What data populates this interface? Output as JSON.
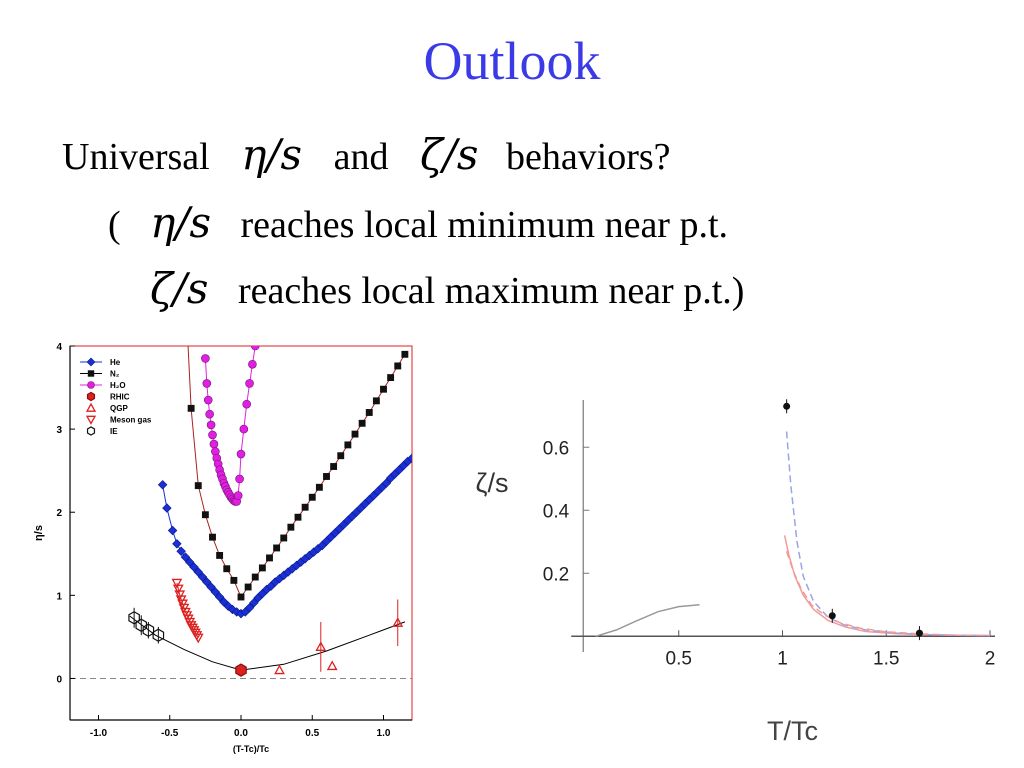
{
  "slide": {
    "title": "Outlook",
    "line1_prefix": "Universal",
    "line1_eta": "η/s",
    "line1_and": "and",
    "line1_zeta": "ζ/s",
    "line1_suffix": "behaviors?",
    "line2_open": "(",
    "line2_eta": "η/s",
    "line2_text": "reaches local minimum near p.t.",
    "line3_zeta": "ζ/s",
    "line3_text": "reaches local maximum near p.t.)"
  },
  "colors": {
    "title": "#3a3ae6",
    "he": "#1a2fd6",
    "n2": "#111111",
    "h2o": "#e020e0",
    "rhic": "#dd2020",
    "frame": "#dd2020"
  },
  "chart_data": [
    {
      "type": "scatter",
      "xlabel": "(T-Tc)/Tc",
      "ylabel": "η/s",
      "xlim": [
        -1.2,
        1.2
      ],
      "ylim": [
        -0.5,
        4
      ],
      "xticks": [
        "-1.0",
        "-0.5",
        "0.0",
        "0.5",
        "1.0"
      ],
      "yticks": [
        "0",
        "1",
        "2",
        "3",
        "4"
      ],
      "legend_position": "top-left",
      "series": [
        {
          "name": "He",
          "marker": "diamond",
          "color": "#1a2fd6",
          "x": [
            -0.55,
            -0.52,
            -0.48,
            -0.45,
            -0.42,
            -0.39,
            -0.36,
            -0.33,
            -0.3,
            -0.27,
            -0.24,
            -0.21,
            -0.18,
            -0.15,
            -0.12,
            -0.09,
            -0.06,
            -0.03,
            0.0,
            0.03,
            0.06,
            0.09,
            0.12,
            0.15,
            0.18,
            0.21,
            0.24,
            0.27,
            0.3,
            0.33,
            0.36,
            0.39,
            0.42,
            0.45,
            0.48,
            0.51,
            0.54,
            0.57,
            0.6,
            0.63,
            0.66,
            0.69,
            0.72,
            0.75,
            0.78,
            0.81,
            0.84,
            0.87,
            0.9,
            0.93,
            0.96,
            0.99,
            1.02,
            1.05,
            1.08,
            1.11,
            1.14,
            1.17,
            1.2
          ],
          "y": [
            2.33,
            2.05,
            1.78,
            1.62,
            1.53,
            1.46,
            1.4,
            1.34,
            1.28,
            1.22,
            1.16,
            1.1,
            1.04,
            0.98,
            0.92,
            0.87,
            0.83,
            0.8,
            0.78,
            0.8,
            0.85,
            0.91,
            0.97,
            1.02,
            1.07,
            1.11,
            1.16,
            1.2,
            1.24,
            1.28,
            1.32,
            1.36,
            1.4,
            1.44,
            1.48,
            1.52,
            1.56,
            1.6,
            1.65,
            1.7,
            1.75,
            1.8,
            1.85,
            1.9,
            1.95,
            2.0,
            2.05,
            2.1,
            2.15,
            2.2,
            2.25,
            2.3,
            2.35,
            2.41,
            2.46,
            2.51,
            2.56,
            2.61,
            2.65
          ]
        },
        {
          "name": "N2",
          "marker": "square",
          "color": "#111111",
          "x": [
            -0.35,
            -0.3,
            -0.25,
            -0.2,
            -0.15,
            -0.1,
            -0.05,
            0.0,
            0.05,
            0.1,
            0.15,
            0.2,
            0.25,
            0.3,
            0.35,
            0.4,
            0.45,
            0.5,
            0.55,
            0.6,
            0.65,
            0.7,
            0.75,
            0.8,
            0.85,
            0.9,
            0.95,
            1.0,
            1.05,
            1.1,
            1.15
          ],
          "y": [
            3.25,
            2.32,
            1.97,
            1.7,
            1.48,
            1.32,
            1.18,
            0.98,
            1.1,
            1.22,
            1.33,
            1.45,
            1.57,
            1.69,
            1.82,
            1.94,
            2.06,
            2.18,
            2.3,
            2.43,
            2.55,
            2.68,
            2.81,
            2.94,
            3.07,
            3.2,
            3.34,
            3.48,
            3.62,
            3.76,
            3.9
          ]
        },
        {
          "name": "H2O",
          "marker": "circle",
          "color": "#e020e0",
          "x": [
            -0.25,
            -0.24,
            -0.23,
            -0.22,
            -0.21,
            -0.2,
            -0.19,
            -0.18,
            -0.17,
            -0.16,
            -0.15,
            -0.14,
            -0.13,
            -0.12,
            -0.11,
            -0.1,
            -0.09,
            -0.08,
            -0.07,
            -0.06,
            -0.05,
            -0.04,
            -0.03,
            -0.02,
            -0.01,
            0.0,
            0.02,
            0.04,
            0.06,
            0.08,
            0.1
          ],
          "y": [
            3.85,
            3.55,
            3.35,
            3.18,
            3.05,
            2.93,
            2.82,
            2.73,
            2.65,
            2.58,
            2.51,
            2.45,
            2.4,
            2.35,
            2.31,
            2.27,
            2.24,
            2.21,
            2.18,
            2.16,
            2.14,
            2.13,
            2.13,
            2.2,
            2.4,
            2.7,
            3.0,
            3.3,
            3.55,
            3.78,
            4.0
          ]
        },
        {
          "name": "RHIC",
          "marker": "hexagon",
          "color": "#dd2020",
          "x": [
            0.0
          ],
          "y": [
            0.1
          ],
          "err": [
            0.05
          ]
        },
        {
          "name": "QGP",
          "marker": "triangle-up",
          "color": "#dd2020",
          "x": [
            0.27,
            0.56,
            0.64,
            1.1
          ],
          "y": [
            0.1,
            0.38,
            0.15,
            0.67
          ],
          "err": [
            0,
            0.3,
            0,
            0.28
          ]
        },
        {
          "name": "Meson gas",
          "marker": "triangle-down",
          "color": "#dd2020",
          "x": [
            -0.45,
            -0.44,
            -0.43,
            -0.42,
            -0.41,
            -0.4,
            -0.39,
            -0.38,
            -0.37,
            -0.36,
            -0.35,
            -0.34,
            -0.33,
            -0.32,
            -0.31,
            -0.3
          ],
          "y": [
            1.15,
            1.08,
            1.01,
            0.95,
            0.9,
            0.85,
            0.8,
            0.76,
            0.72,
            0.68,
            0.64,
            0.61,
            0.58,
            0.55,
            0.52,
            0.49
          ]
        },
        {
          "name": "IE",
          "marker": "hexagon-open",
          "color": "#111111",
          "x": [
            -0.75,
            -0.7,
            -0.65,
            -0.58
          ],
          "y": [
            0.73,
            0.64,
            0.58,
            0.52
          ],
          "err": [
            0.12,
            0.12,
            0.1,
            0.1
          ]
        }
      ],
      "reference_line_y": 0
    },
    {
      "type": "line",
      "xlabel": "T/Tc",
      "ylabel": "ζ/s",
      "xlim": [
        0,
        2
      ],
      "ylim": [
        -0.05,
        0.75
      ],
      "xticks": [
        "0.5",
        "1",
        "1.5",
        "2"
      ],
      "yticks": [
        "0.2",
        "0.4",
        "0.6"
      ],
      "points": {
        "x": [
          1.02,
          1.24,
          1.66
        ],
        "y": [
          0.73,
          0.065,
          0.01
        ],
        "color": "#111111"
      },
      "curves": [
        {
          "style": "solid",
          "color": "#999999",
          "x": [
            0.1,
            0.2,
            0.3,
            0.4,
            0.5,
            0.6
          ],
          "y": [
            0.0,
            0.02,
            0.05,
            0.078,
            0.094,
            0.1
          ]
        },
        {
          "style": "solid",
          "color": "#f29a9a",
          "x": [
            1.01,
            1.03,
            1.06,
            1.1,
            1.15,
            1.22,
            1.3,
            1.4,
            1.55,
            1.7,
            1.85,
            2.0
          ],
          "y": [
            0.32,
            0.26,
            0.19,
            0.13,
            0.085,
            0.05,
            0.03,
            0.015,
            0.008,
            0.005,
            0.003,
            0.002
          ]
        },
        {
          "style": "dashed",
          "color": "#9aa4e8",
          "x": [
            1.02,
            1.04,
            1.07,
            1.1,
            1.15,
            1.22,
            1.3,
            1.4,
            1.55,
            1.7,
            1.85,
            2.0
          ],
          "y": [
            0.65,
            0.48,
            0.3,
            0.19,
            0.11,
            0.06,
            0.035,
            0.02,
            0.01,
            0.005,
            0.003,
            0.002
          ]
        },
        {
          "style": "dashed",
          "color": "#f29a9a",
          "x": [
            1.02,
            1.05,
            1.09,
            1.14,
            1.2,
            1.28,
            1.38,
            1.5,
            1.65,
            1.8,
            2.0
          ],
          "y": [
            0.27,
            0.21,
            0.15,
            0.1,
            0.068,
            0.042,
            0.025,
            0.014,
            0.008,
            0.004,
            0.002
          ]
        }
      ]
    }
  ]
}
